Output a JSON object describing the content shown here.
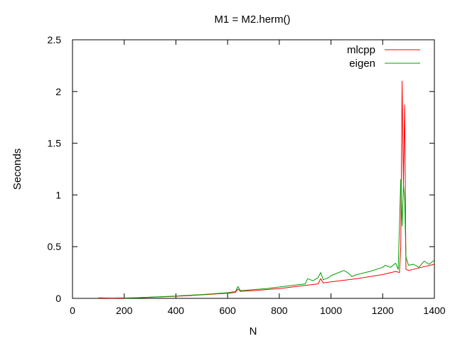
{
  "chart_data": {
    "type": "line",
    "title": "M1 = M2.herm()",
    "xlabel": "N",
    "ylabel": "Seconds",
    "xlim": [
      0,
      1400
    ],
    "ylim": [
      0,
      2.5
    ],
    "xticks": [
      0,
      200,
      400,
      600,
      800,
      1000,
      1200,
      1400
    ],
    "xtick_labels": [
      "0",
      "200",
      "400",
      "600",
      "800",
      "1000",
      "1200",
      "1400"
    ],
    "yticks": [
      0,
      0.5,
      1,
      1.5,
      2,
      2.5
    ],
    "ytick_labels": [
      "0",
      "0.5",
      "1",
      "1.5",
      "2",
      "2.5"
    ],
    "grid": false,
    "legend_position": "top-right",
    "series": [
      {
        "name": "mlcpp",
        "color": "#ff0000",
        "points": [
          [
            100,
            0.005
          ],
          [
            150,
            0.003
          ],
          [
            200,
            0.004
          ],
          [
            250,
            0.006
          ],
          [
            300,
            0.01
          ],
          [
            350,
            0.015
          ],
          [
            400,
            0.02
          ],
          [
            450,
            0.027
          ],
          [
            500,
            0.034
          ],
          [
            550,
            0.042
          ],
          [
            600,
            0.05
          ],
          [
            630,
            0.058
          ],
          [
            640,
            0.09
          ],
          [
            650,
            0.068
          ],
          [
            700,
            0.075
          ],
          [
            750,
            0.085
          ],
          [
            800,
            0.095
          ],
          [
            850,
            0.11
          ],
          [
            900,
            0.125
          ],
          [
            950,
            0.14
          ],
          [
            960,
            0.19
          ],
          [
            970,
            0.15
          ],
          [
            1000,
            0.16
          ],
          [
            1050,
            0.175
          ],
          [
            1100,
            0.19
          ],
          [
            1150,
            0.21
          ],
          [
            1200,
            0.23
          ],
          [
            1250,
            0.26
          ],
          [
            1265,
            0.25
          ],
          [
            1270,
            0.5
          ],
          [
            1275,
            2.1
          ],
          [
            1280,
            1.1
          ],
          [
            1285,
            1.87
          ],
          [
            1290,
            0.28
          ],
          [
            1300,
            0.27
          ],
          [
            1350,
            0.3
          ],
          [
            1400,
            0.33
          ]
        ]
      },
      {
        "name": "eigen",
        "color": "#00a000",
        "points": [
          [
            200,
            0.003
          ],
          [
            250,
            0.006
          ],
          [
            300,
            0.012
          ],
          [
            350,
            0.017
          ],
          [
            400,
            0.023
          ],
          [
            450,
            0.03
          ],
          [
            500,
            0.037
          ],
          [
            550,
            0.045
          ],
          [
            600,
            0.055
          ],
          [
            630,
            0.065
          ],
          [
            640,
            0.115
          ],
          [
            650,
            0.075
          ],
          [
            700,
            0.085
          ],
          [
            750,
            0.095
          ],
          [
            800,
            0.11
          ],
          [
            850,
            0.125
          ],
          [
            900,
            0.14
          ],
          [
            910,
            0.19
          ],
          [
            930,
            0.17
          ],
          [
            950,
            0.2
          ],
          [
            960,
            0.25
          ],
          [
            970,
            0.18
          ],
          [
            990,
            0.2
          ],
          [
            1000,
            0.22
          ],
          [
            1030,
            0.25
          ],
          [
            1050,
            0.27
          ],
          [
            1070,
            0.24
          ],
          [
            1080,
            0.21
          ],
          [
            1100,
            0.23
          ],
          [
            1150,
            0.26
          ],
          [
            1200,
            0.3
          ],
          [
            1210,
            0.32
          ],
          [
            1230,
            0.3
          ],
          [
            1250,
            0.34
          ],
          [
            1260,
            0.28
          ],
          [
            1270,
            1.15
          ],
          [
            1275,
            0.7
          ],
          [
            1280,
            1.1
          ],
          [
            1285,
            0.95
          ],
          [
            1290,
            0.4
          ],
          [
            1300,
            0.32
          ],
          [
            1320,
            0.33
          ],
          [
            1340,
            0.3
          ],
          [
            1360,
            0.36
          ],
          [
            1380,
            0.33
          ],
          [
            1400,
            0.37
          ]
        ]
      }
    ]
  }
}
